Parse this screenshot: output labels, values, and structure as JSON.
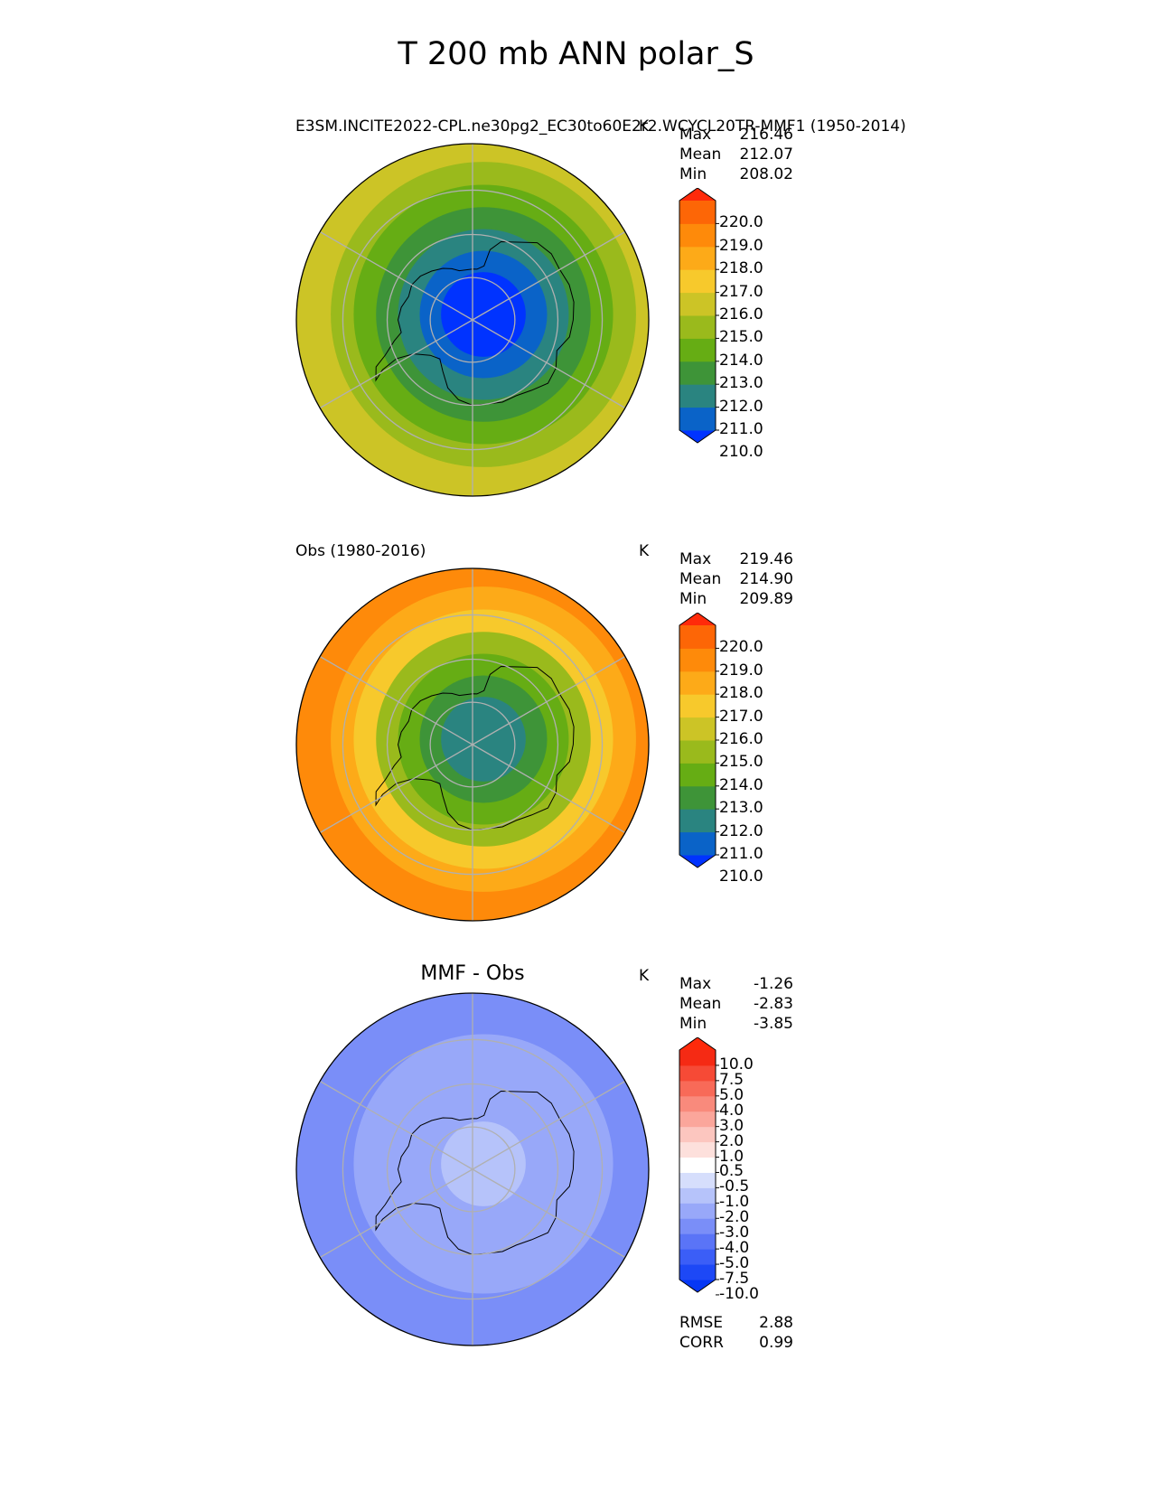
{
  "title": "T 200 mb ANN polar_S",
  "panels": [
    {
      "id": "test",
      "title_left": "E3SM.INCITE2022-CPL.ne30pg2_EC30to60E2r2.WCYCL20TR-MMF1 (1950-2014)",
      "title_center": "",
      "units": "K",
      "stats": [
        {
          "label": "Max",
          "value": "216.46"
        },
        {
          "label": "Mean",
          "value": "212.07"
        },
        {
          "label": "Min",
          "value": "208.02"
        }
      ],
      "colorbar": {
        "ticks": [
          "220.0",
          "219.0",
          "218.0",
          "217.0",
          "216.0",
          "215.0",
          "214.0",
          "213.0",
          "212.0",
          "211.0",
          "210.0"
        ],
        "colors": [
          "#0033ff",
          "#0a63c8",
          "#2a8480",
          "#3e9438",
          "#66ad14",
          "#9aba1c",
          "#ccc426",
          "#f7c92c",
          "#fdaa18",
          "#fe8a0a",
          "#fd6606",
          "#ff2a0a"
        ]
      }
    },
    {
      "id": "reference",
      "title_left": "Obs (1980-2016)",
      "title_center": "",
      "units": "K",
      "stats": [
        {
          "label": "Max",
          "value": "219.46"
        },
        {
          "label": "Mean",
          "value": "214.90"
        },
        {
          "label": "Min",
          "value": "209.89"
        }
      ],
      "colorbar": {
        "ticks": [
          "220.0",
          "219.0",
          "218.0",
          "217.0",
          "216.0",
          "215.0",
          "214.0",
          "213.0",
          "212.0",
          "211.0",
          "210.0"
        ],
        "colors": [
          "#0033ff",
          "#0a63c8",
          "#2a8480",
          "#3e9438",
          "#66ad14",
          "#9aba1c",
          "#ccc426",
          "#f7c92c",
          "#fdaa18",
          "#fe8a0a",
          "#fd6606",
          "#ff2a0a"
        ]
      }
    },
    {
      "id": "diff",
      "title_left": "",
      "title_center": "MMF - Obs",
      "units": "K",
      "stats": [
        {
          "label": "Max",
          "value": "-1.26"
        },
        {
          "label": "Mean",
          "value": "-2.83"
        },
        {
          "label": "Min",
          "value": "-3.85"
        }
      ],
      "colorbar": {
        "ticks": [
          "10.0",
          "7.5",
          "5.0",
          "4.0",
          "3.0",
          "2.0",
          "1.0",
          "0.5",
          "-0.5",
          "-1.0",
          "-2.0",
          "-3.0",
          "-4.0",
          "-5.0",
          "-7.5",
          "-10.0"
        ],
        "colors": [
          "#0637f5",
          "#1d48f6",
          "#3b5ef7",
          "#5a74f7",
          "#7a8ef8",
          "#98a8f9",
          "#b6c3fa",
          "#d6defc",
          "#ffffff",
          "#fde0dc",
          "#fcc6bf",
          "#fba69b",
          "#f98a7c",
          "#f86a58",
          "#f64a36",
          "#f52a14",
          "#ff2a0a"
        ]
      },
      "metrics": [
        {
          "label": "RMSE",
          "value": "2.88"
        },
        {
          "label": "CORR",
          "value": "0.99"
        }
      ]
    }
  ],
  "chart_data": [
    {
      "type": "heatmap",
      "title": "E3SM.INCITE2022-CPL.ne30pg2_EC30to60E2r2.WCYCL20TR-MMF1 (1950-2014)",
      "projection": "south polar stereographic",
      "units": "K",
      "levels": [
        210,
        211,
        212,
        213,
        214,
        215,
        216,
        217,
        218,
        219,
        220
      ],
      "stats": {
        "max": 216.46,
        "mean": 212.07,
        "min": 208.02
      },
      "field_rings": [
        {
          "lat": -90,
          "value": 209.5
        },
        {
          "lat": -80,
          "value": 209.6
        },
        {
          "lat": -75,
          "value": 210.5
        },
        {
          "lat": -70,
          "value": 211.4
        },
        {
          "lat": -65,
          "value": 212.6
        },
        {
          "lat": -60,
          "value": 213.6
        },
        {
          "lat": -55,
          "value": 214.5
        },
        {
          "lat": -50,
          "value": 215.0
        }
      ]
    },
    {
      "type": "heatmap",
      "title": "Obs (1980-2016)",
      "projection": "south polar stereographic",
      "units": "K",
      "levels": [
        210,
        211,
        212,
        213,
        214,
        215,
        216,
        217,
        218,
        219,
        220
      ],
      "stats": {
        "max": 219.46,
        "mean": 214.9,
        "min": 209.89
      },
      "field_rings": [
        {
          "lat": -90,
          "value": 210.5
        },
        {
          "lat": -80,
          "value": 211.4
        },
        {
          "lat": -75,
          "value": 212.5
        },
        {
          "lat": -70,
          "value": 213.5
        },
        {
          "lat": -65,
          "value": 214.5
        },
        {
          "lat": -60,
          "value": 216.3
        },
        {
          "lat": -55,
          "value": 217.4
        },
        {
          "lat": -50,
          "value": 218.2
        }
      ]
    },
    {
      "type": "heatmap",
      "title": "MMF - Obs",
      "projection": "south polar stereographic",
      "units": "K",
      "levels": [
        -10,
        -7.5,
        -5,
        -4,
        -3,
        -2,
        -1,
        -0.5,
        0.5,
        1,
        2,
        3,
        4,
        5,
        7.5,
        10
      ],
      "stats": {
        "max": -1.26,
        "mean": -2.83,
        "min": -3.85,
        "rmse": 2.88,
        "corr": 0.99
      },
      "field_rings": [
        {
          "lat": -90,
          "value": -1.5
        },
        {
          "lat": -80,
          "value": -1.7
        },
        {
          "lat": -70,
          "value": -2.4
        },
        {
          "lat": -60,
          "value": -2.6
        },
        {
          "lat": -50,
          "value": -3.2
        }
      ]
    }
  ]
}
